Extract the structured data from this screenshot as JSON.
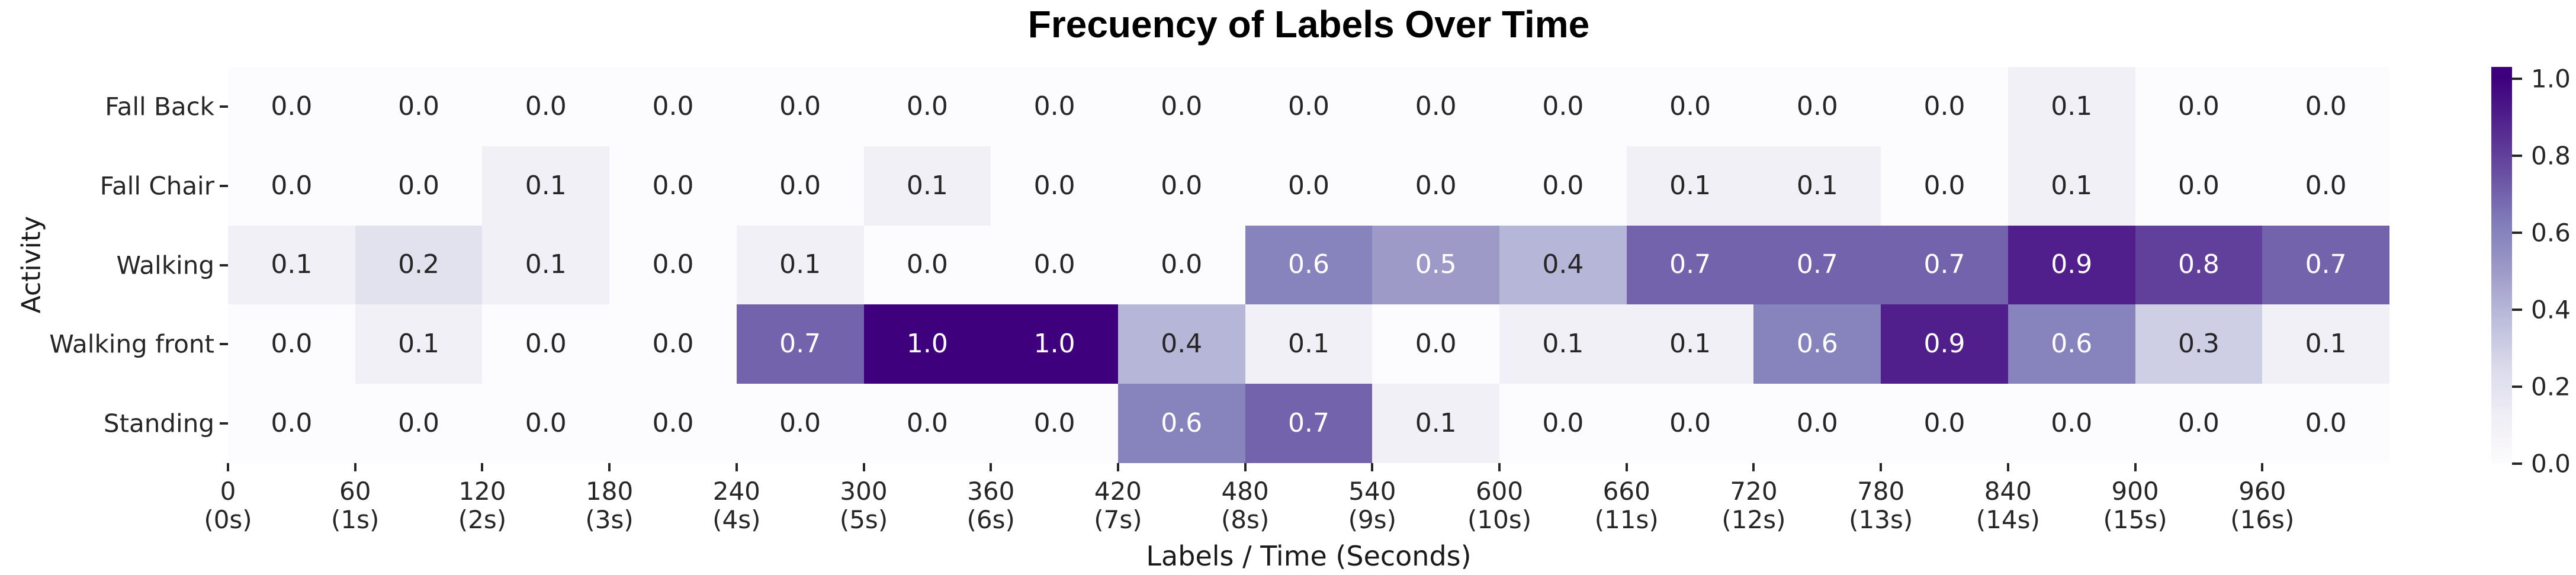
{
  "figure": {
    "background": "#ffffff"
  },
  "chart_data": {
    "type": "heatmap",
    "title": "Frecuency of Labels Over Time",
    "xlabel": "Labels / Time (Seconds)",
    "ylabel": "Activity",
    "y_categories": [
      "Fall Back",
      "Fall Chair",
      "Walking",
      "Walking front",
      "Standing"
    ],
    "x_tick_labels": [
      {
        "value": "0",
        "seconds": "(0s)"
      },
      {
        "value": "60",
        "seconds": "(1s)"
      },
      {
        "value": "120",
        "seconds": "(2s)"
      },
      {
        "value": "180",
        "seconds": "(3s)"
      },
      {
        "value": "240",
        "seconds": "(4s)"
      },
      {
        "value": "300",
        "seconds": "(5s)"
      },
      {
        "value": "360",
        "seconds": "(6s)"
      },
      {
        "value": "420",
        "seconds": "(7s)"
      },
      {
        "value": "480",
        "seconds": "(8s)"
      },
      {
        "value": "540",
        "seconds": "(9s)"
      },
      {
        "value": "600",
        "seconds": "(10s)"
      },
      {
        "value": "660",
        "seconds": "(11s)"
      },
      {
        "value": "720",
        "seconds": "(12s)"
      },
      {
        "value": "780",
        "seconds": "(13s)"
      },
      {
        "value": "840",
        "seconds": "(14s)"
      },
      {
        "value": "900",
        "seconds": "(15s)"
      },
      {
        "value": "960",
        "seconds": "(16s)"
      }
    ],
    "values": [
      [
        0.0,
        0.0,
        0.0,
        0.0,
        0.0,
        0.0,
        0.0,
        0.0,
        0.0,
        0.0,
        0.0,
        0.0,
        0.0,
        0.0,
        0.1,
        0.0,
        0.0
      ],
      [
        0.0,
        0.0,
        0.1,
        0.0,
        0.0,
        0.1,
        0.0,
        0.0,
        0.0,
        0.0,
        0.0,
        0.1,
        0.1,
        0.0,
        0.1,
        0.0,
        0.0
      ],
      [
        0.1,
        0.2,
        0.1,
        0.0,
        0.1,
        0.0,
        0.0,
        0.0,
        0.6,
        0.5,
        0.4,
        0.7,
        0.7,
        0.7,
        0.9,
        0.8,
        0.7
      ],
      [
        0.0,
        0.1,
        0.0,
        0.0,
        0.7,
        1.0,
        1.0,
        0.4,
        0.1,
        0.0,
        0.1,
        0.1,
        0.6,
        0.9,
        0.6,
        0.3,
        0.1
      ],
      [
        0.0,
        0.0,
        0.0,
        0.0,
        0.0,
        0.0,
        0.0,
        0.6,
        0.7,
        0.1,
        0.0,
        0.0,
        0.0,
        0.0,
        0.0,
        0.0,
        0.0
      ]
    ],
    "value_format": "one-decimal",
    "vmin": 0.0,
    "vmax": 1.0,
    "grid": false,
    "legend_position": "right-colorbar",
    "colorbar": {
      "ticks": [
        "1.0",
        "0.8",
        "0.6",
        "0.4",
        "0.2",
        "0.0"
      ]
    },
    "colormap": {
      "name": "Purples",
      "stops": [
        "#fcfbfd",
        "#efedf5",
        "#dadaeb",
        "#bcbddc",
        "#9e9ac8",
        "#807dba",
        "#6a51a3",
        "#54278f",
        "#3f007d"
      ]
    },
    "annotation_colors": {
      "dark": "#262626",
      "light": "#ffffff"
    },
    "tick_color": "#262626"
  }
}
